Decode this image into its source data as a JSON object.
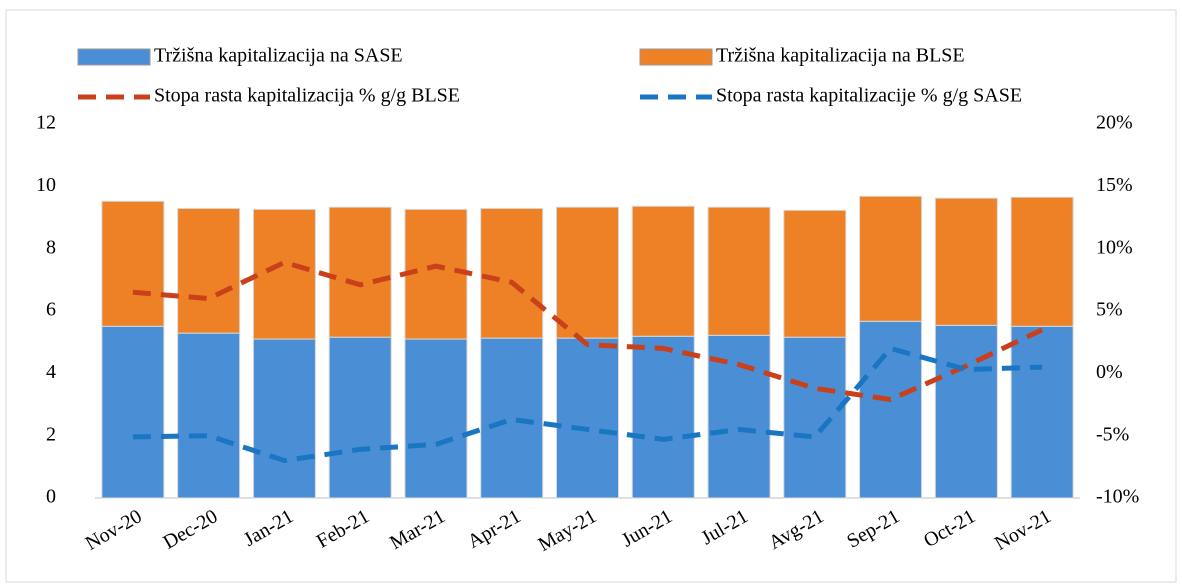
{
  "chart_data": {
    "type": "bar",
    "categories": [
      "Nov-20",
      "Dec-20",
      "Jan-21",
      "Feb-21",
      "Mar-21",
      "Apr-21",
      "May-21",
      "Jun-21",
      "Jul-21",
      "Avg-21",
      "Sep-21",
      "Oct-21",
      "Nov-21"
    ],
    "series": [
      {
        "name": "Tržišna kapitalizacija na SASE",
        "color": "#4a8fd6",
        "values": [
          5.51,
          5.29,
          5.1,
          5.16,
          5.1,
          5.13,
          5.13,
          5.19,
          5.22,
          5.16,
          5.67,
          5.54,
          5.51
        ]
      },
      {
        "name": "Tržišna kapitalizacija na BLSE",
        "color": "#ee8125",
        "values": [
          4.01,
          4.0,
          4.16,
          4.17,
          4.16,
          4.16,
          4.2,
          4.17,
          4.11,
          4.07,
          4.01,
          4.08,
          4.14
        ]
      },
      {
        "name": "Stopa rasta kapitalizacija % g/g BLSE",
        "color": "#c9401a",
        "type": "line",
        "axis": "y2",
        "values": [
          6.5,
          6.0,
          8.9,
          7.1,
          8.6,
          7.3,
          2.3,
          2.0,
          0.7,
          -1.2,
          -2.1,
          0.6,
          3.5
        ]
      },
      {
        "name": "Stopa rasta kapitalizacije % g/g SASE",
        "color": "#1a76c2",
        "type": "line",
        "axis": "y2",
        "values": [
          -5.1,
          -5.0,
          -7.0,
          -6.1,
          -5.7,
          -3.7,
          -4.5,
          -5.3,
          -4.5,
          -5.1,
          2.0,
          0.3,
          0.5
        ]
      }
    ],
    "stacked": true,
    "ylim": [
      0,
      12
    ],
    "yticks": [
      0,
      2,
      4,
      6,
      8,
      10,
      12
    ],
    "y2lim": [
      -10,
      20
    ],
    "y2ticks": [
      {
        "value": -10,
        "label": "-10%"
      },
      {
        "value": -5,
        "label": "-5%"
      },
      {
        "value": 0,
        "label": "0%"
      },
      {
        "value": 5,
        "label": "5%"
      },
      {
        "value": 10,
        "label": "10%"
      },
      {
        "value": 15,
        "label": "15%"
      },
      {
        "value": 20,
        "label": "20%"
      }
    ],
    "legend": "top"
  }
}
